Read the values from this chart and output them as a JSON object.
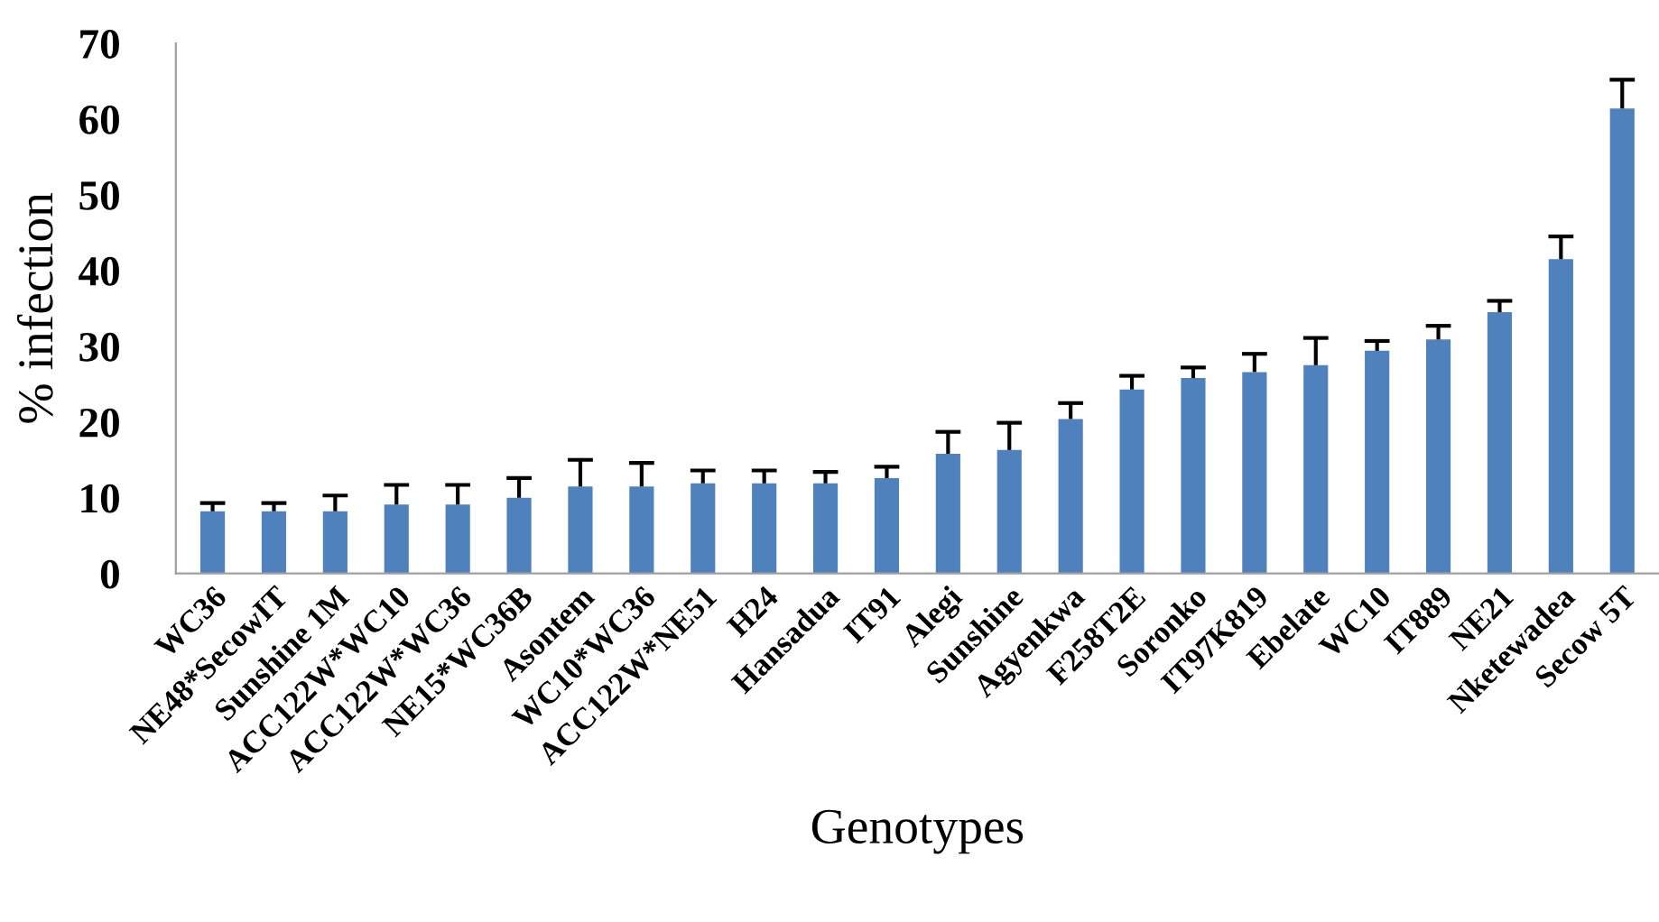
{
  "chart_data": {
    "type": "bar",
    "xlabel": "Genotypes",
    "ylabel": "% infection",
    "categories": [
      "WC36",
      "NE48*SecowIT",
      "Sunshine 1M",
      "ACC122W*WC10",
      "ACC122W*WC36",
      "NE15*WC36B",
      "Asontem",
      "WC10*WC36",
      "ACC122W*NE51",
      "H24",
      "Hansadua",
      "IT91",
      "Alegi",
      "Sunshine",
      "Agyenkwa",
      "F258T2E",
      "Soronko",
      "IT97K819",
      "Ebelate",
      "WC10",
      "IT889",
      "NE21",
      "Nketewadea",
      "Secow 5T"
    ],
    "values": [
      8.2,
      8.2,
      8.2,
      9.1,
      9.1,
      10.0,
      11.5,
      11.5,
      11.9,
      11.9,
      11.9,
      12.6,
      15.8,
      16.3,
      20.4,
      24.3,
      25.8,
      26.6,
      27.5,
      29.4,
      30.9,
      34.5,
      41.5,
      61.4
    ],
    "errors": [
      [
        8.2,
        9.3
      ],
      [
        8.2,
        9.3
      ],
      [
        8.2,
        10.3
      ],
      [
        9.1,
        11.7
      ],
      [
        9.1,
        11.7
      ],
      [
        10.0,
        12.6
      ],
      [
        11.5,
        15.0
      ],
      [
        11.5,
        14.6
      ],
      [
        11.9,
        13.6
      ],
      [
        11.9,
        13.6
      ],
      [
        11.9,
        13.4
      ],
      [
        12.6,
        14.1
      ],
      [
        15.8,
        18.7
      ],
      [
        16.3,
        19.9
      ],
      [
        20.4,
        22.5
      ],
      [
        24.3,
        26.1
      ],
      [
        25.8,
        27.2
      ],
      [
        26.6,
        29.0
      ],
      [
        27.5,
        31.1
      ],
      [
        29.4,
        30.7
      ],
      [
        30.9,
        32.7
      ],
      [
        34.5,
        36.0
      ],
      [
        41.5,
        44.5
      ],
      [
        61.4,
        65.2
      ]
    ],
    "color": "#4f81bd",
    "ylim": [
      0,
      70
    ],
    "yticks": [
      0,
      10,
      20,
      30,
      40,
      50,
      60,
      70
    ],
    "grid": false,
    "legend": false
  }
}
